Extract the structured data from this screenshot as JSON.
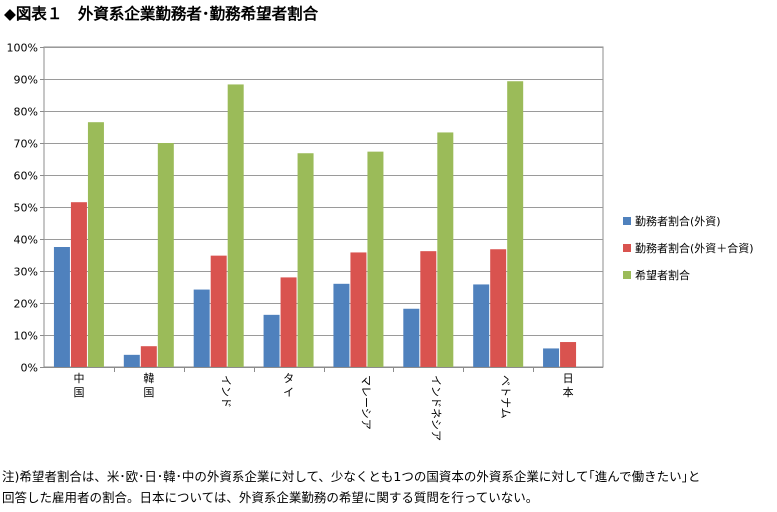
{
  "title": "◆図表１　外資系企業勤務者･勤務希望者割合",
  "note_line1": "注)希望者割合は、米･欧･日･韓･中の外資系企業に対して、少なくとも1つの国資本の外資系企業に対して｢進んで働きたい｣と",
  "note_line2": "回答した雇用者の割合。日本については、外資系企業勤務の希望に関する質問を行っていない。",
  "chart_data": {
    "type": "bar",
    "title": "",
    "xlabel": "",
    "ylabel": "",
    "ylim": [
      0,
      100
    ],
    "y_ticks": [
      "0%",
      "10%",
      "20%",
      "30%",
      "40%",
      "50%",
      "60%",
      "70%",
      "80%",
      "90%",
      "100%"
    ],
    "categories": [
      "中国",
      "韓国",
      "インド",
      "タイ",
      "マレーシア",
      "インドネシア",
      "ベトナム",
      "日本"
    ],
    "series": [
      {
        "name": "勤務者割合(外資)",
        "color": "#4f81bd",
        "values": [
          37.5,
          3.8,
          24.2,
          16.3,
          26.0,
          18.2,
          25.8,
          5.8
        ]
      },
      {
        "name": "勤務者割合(外資＋合資)",
        "color": "#d9534f",
        "values": [
          51.5,
          6.5,
          34.8,
          28.0,
          35.8,
          36.2,
          36.8,
          7.8
        ]
      },
      {
        "name": "希望者割合",
        "color": "#9bbb59",
        "values": [
          76.5,
          70.0,
          88.3,
          66.8,
          67.3,
          73.3,
          89.3,
          null
        ]
      }
    ],
    "grid": true,
    "legend_position": "right"
  }
}
